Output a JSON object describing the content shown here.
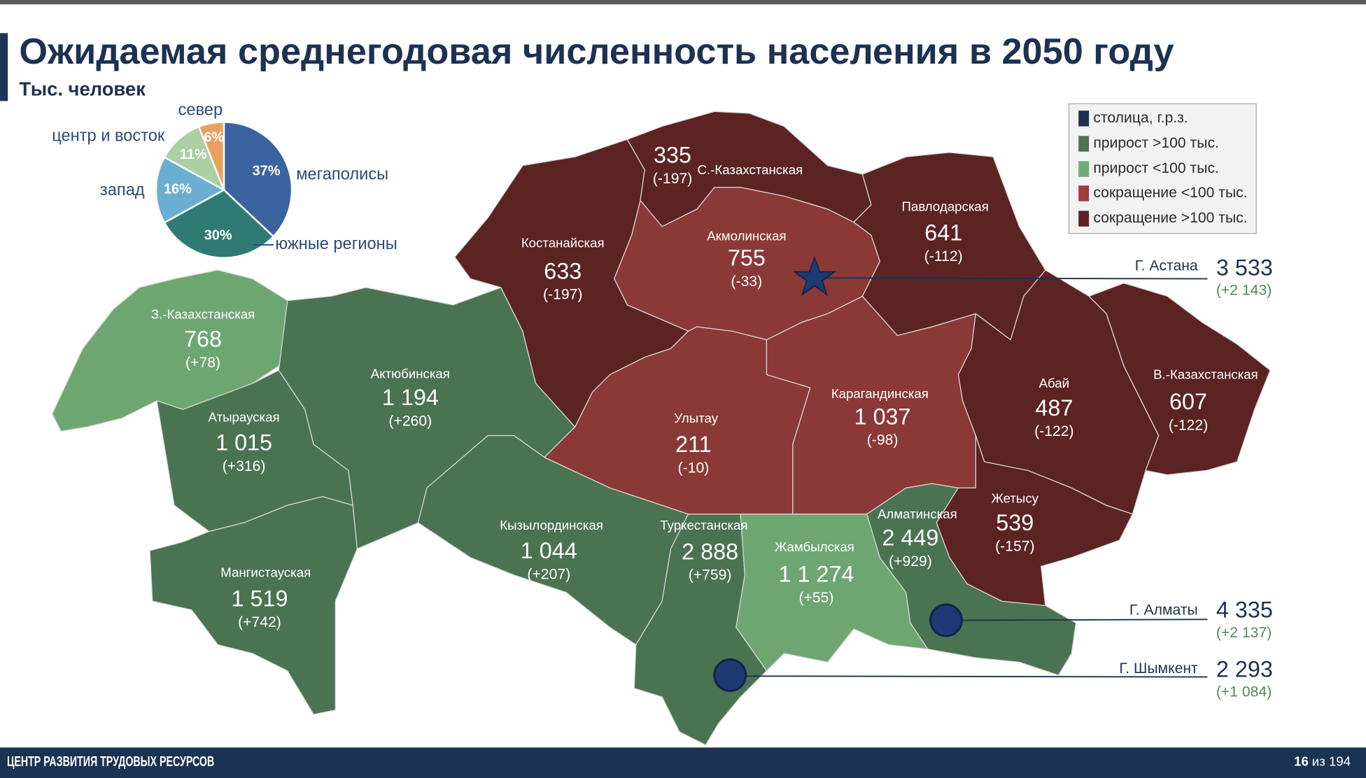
{
  "header": {
    "title": "Ожидаемая среднегодовая численность населения в 2050 году",
    "subtitle": "Тыс. человек"
  },
  "chart_data": {
    "type": "pie",
    "categories": [
      "мегаполисы",
      "южные регионы",
      "запад",
      "центр и восток",
      "север"
    ],
    "values": [
      37,
      30,
      16,
      11,
      6
    ],
    "value_labels": [
      "37%",
      "30%",
      "16%",
      "11%",
      "6%"
    ],
    "colors": [
      "#3a63a0",
      "#2f7b74",
      "#6aaed2",
      "#a9cfa2",
      "#e9a15d"
    ]
  },
  "legend": {
    "items": [
      "столица, г.р.з.",
      "прирост >100 тыс.",
      "прирост <100 тыс.",
      "сокращение <100 тыс.",
      "сокращение >100 тыс."
    ]
  },
  "regions": [
    {
      "name": "З.-Казахстанская",
      "value": "768",
      "change": "(+78)"
    },
    {
      "name": "Атырауская",
      "value": "1 015",
      "change": "(+316)"
    },
    {
      "name": "Актюбинская",
      "value": "1 194",
      "change": "(+260)"
    },
    {
      "name": "Мангистауская",
      "value": "1 519",
      "change": "(+742)"
    },
    {
      "name": "Кызылординская",
      "value": "1 044",
      "change": "(+207)"
    },
    {
      "name": "Туркестанская",
      "value": "2 888",
      "change": "(+759)"
    },
    {
      "name": "Жамбылская",
      "value": "1 1 274",
      "change": "(+55)"
    },
    {
      "name": "Алматинская",
      "value": "2 449",
      "change": "(+929)"
    },
    {
      "name": "Жетысу",
      "value": "539",
      "change": "(-157)"
    },
    {
      "name": "Улытау",
      "value": "211",
      "change": "(-10)"
    },
    {
      "name": "Карагандинская",
      "value": "1 037",
      "change": "(-98)"
    },
    {
      "name": "Абай",
      "value": "487",
      "change": "(-122)"
    },
    {
      "name": "В.-Казахстанская",
      "value": "607",
      "change": "(-122)"
    },
    {
      "name": "Акмолинская",
      "value": "755",
      "change": "(-33)"
    },
    {
      "name": "Костанайская",
      "value": "633",
      "change": "(-197)"
    },
    {
      "name": "С.-Казахстанская",
      "value": "335",
      "change": "(-197)"
    },
    {
      "name": "Павлодарская",
      "value": "641",
      "change": "(-112)"
    }
  ],
  "cities": [
    {
      "name": "Г. Астана",
      "value": "3 533",
      "change": "(+2 143)"
    },
    {
      "name": "Г. Алматы",
      "value": "4 335",
      "change": "(+2 137)"
    },
    {
      "name": "Г. Шымкент",
      "value": "2 293",
      "change": "(+1 084)"
    }
  ],
  "footer": {
    "organization": "ЦЕНТР РАЗВИТИЯ ТРУДОВЫХ РЕСУРСОВ",
    "page": "16",
    "page_of": "из 194"
  }
}
